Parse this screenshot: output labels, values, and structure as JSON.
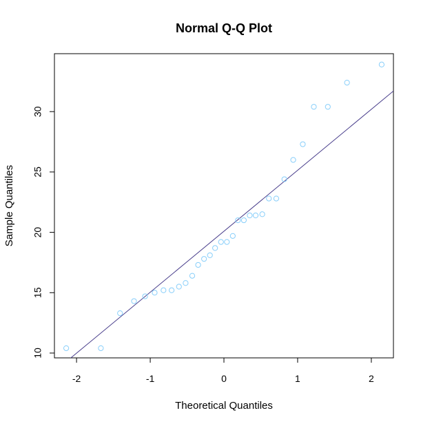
{
  "chart_data": {
    "type": "scatter",
    "title": "Normal Q-Q Plot",
    "xlabel": "Theoretical Quantiles",
    "ylabel": "Sample Quantiles",
    "xlim": [
      -2.3,
      2.3
    ],
    "ylim": [
      9.6,
      34.8
    ],
    "x_ticks": [
      -2,
      -1,
      0,
      1,
      2
    ],
    "x_tick_labels": [
      "-2",
      "-1",
      "0",
      "1",
      "2"
    ],
    "y_ticks": [
      10,
      15,
      20,
      25,
      30
    ],
    "y_tick_labels": [
      "10",
      "15",
      "20",
      "25",
      "30"
    ],
    "grid": false,
    "point_color": "#87CEFA",
    "line_color": "#483D8B",
    "reference_line": {
      "intercept": 20.09,
      "slope": 5.05
    },
    "points": [
      {
        "x": -2.14,
        "y": 10.4
      },
      {
        "x": -1.67,
        "y": 10.4
      },
      {
        "x": -1.41,
        "y": 13.3
      },
      {
        "x": -1.22,
        "y": 14.3
      },
      {
        "x": -1.07,
        "y": 14.7
      },
      {
        "x": -0.94,
        "y": 15.0
      },
      {
        "x": -0.82,
        "y": 15.2
      },
      {
        "x": -0.71,
        "y": 15.2
      },
      {
        "x": -0.61,
        "y": 15.5
      },
      {
        "x": -0.52,
        "y": 15.8
      },
      {
        "x": -0.43,
        "y": 16.4
      },
      {
        "x": -0.35,
        "y": 17.3
      },
      {
        "x": -0.27,
        "y": 17.8
      },
      {
        "x": -0.19,
        "y": 18.1
      },
      {
        "x": -0.12,
        "y": 18.7
      },
      {
        "x": -0.04,
        "y": 19.2
      },
      {
        "x": 0.04,
        "y": 19.2
      },
      {
        "x": 0.12,
        "y": 19.7
      },
      {
        "x": 0.19,
        "y": 21.0
      },
      {
        "x": 0.27,
        "y": 21.0
      },
      {
        "x": 0.35,
        "y": 21.4
      },
      {
        "x": 0.43,
        "y": 21.4
      },
      {
        "x": 0.52,
        "y": 21.5
      },
      {
        "x": 0.61,
        "y": 22.8
      },
      {
        "x": 0.71,
        "y": 22.8
      },
      {
        "x": 0.82,
        "y": 24.4
      },
      {
        "x": 0.94,
        "y": 26.0
      },
      {
        "x": 1.07,
        "y": 27.3
      },
      {
        "x": 1.22,
        "y": 30.4
      },
      {
        "x": 1.41,
        "y": 30.4
      },
      {
        "x": 1.67,
        "y": 32.4
      },
      {
        "x": 2.14,
        "y": 33.9
      }
    ]
  }
}
